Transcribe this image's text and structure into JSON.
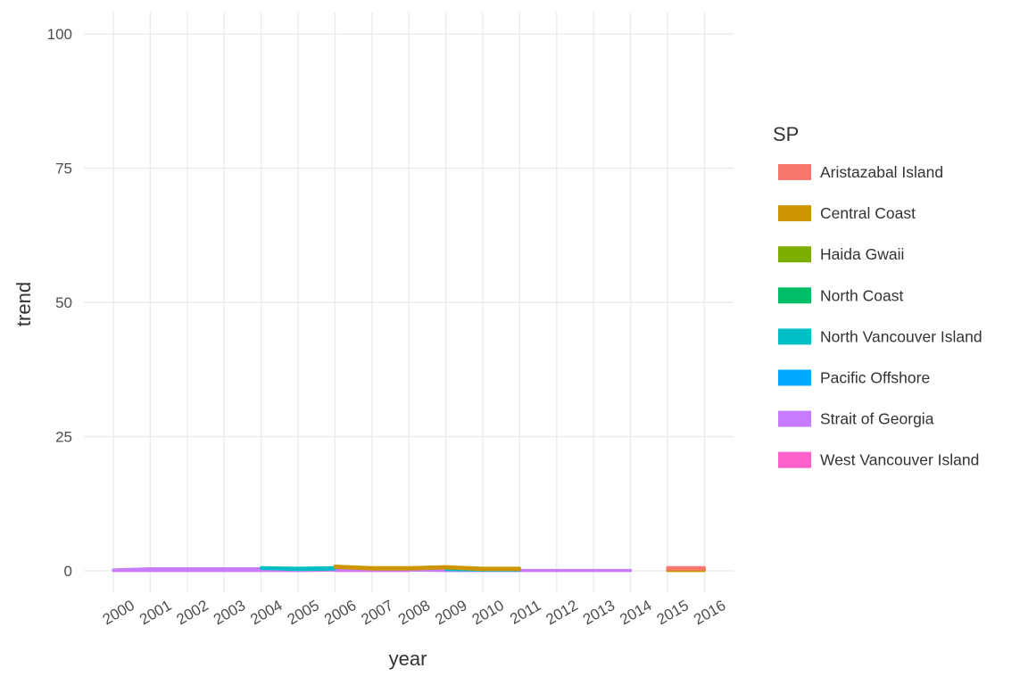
{
  "chart_data": {
    "type": "area",
    "xlabel": "year",
    "ylabel": "trend",
    "x": [
      "2000",
      "2001",
      "2002",
      "2003",
      "2004",
      "2005",
      "2006",
      "2007",
      "2008",
      "2009",
      "2010",
      "2011",
      "2012",
      "2013",
      "2014",
      "2015",
      "2016"
    ],
    "yticks": [
      "0",
      "25",
      "50",
      "75",
      "100"
    ],
    "ylim": [
      -4,
      104
    ],
    "grid": true,
    "legend": {
      "title": "SP",
      "position": "right"
    },
    "series": [
      {
        "name": "Aristazabal Island",
        "color": "#F8766D",
        "values": [
          null,
          null,
          null,
          null,
          null,
          null,
          null,
          null,
          null,
          null,
          null,
          null,
          null,
          null,
          null,
          0.3,
          0.3
        ]
      },
      {
        "name": "Central Coast",
        "color": "#CD9600",
        "values": [
          null,
          null,
          null,
          null,
          null,
          null,
          0.3,
          0.3,
          0.3,
          0.3,
          0.3,
          0.3,
          null,
          null,
          null,
          0.3,
          0.3
        ]
      },
      {
        "name": "Haida Gwaii",
        "color": "#7CAE00",
        "values": [
          null,
          null,
          null,
          null,
          null,
          null,
          null,
          null,
          null,
          null,
          null,
          null,
          null,
          null,
          null,
          null,
          null
        ]
      },
      {
        "name": "North Coast",
        "color": "#00BE67",
        "values": [
          null,
          null,
          null,
          null,
          null,
          null,
          null,
          null,
          null,
          null,
          null,
          null,
          null,
          null,
          null,
          null,
          null
        ]
      },
      {
        "name": "North Vancouver Island",
        "color": "#00BFC4",
        "values": [
          null,
          null,
          null,
          null,
          0.2,
          0.3,
          0.3,
          null,
          null,
          0.3,
          0.1,
          0.1,
          null,
          null,
          null,
          null,
          null
        ]
      },
      {
        "name": "Pacific Offshore",
        "color": "#00A9FF",
        "values": [
          null,
          null,
          null,
          null,
          null,
          null,
          null,
          null,
          null,
          null,
          null,
          null,
          null,
          null,
          null,
          null,
          null
        ]
      },
      {
        "name": "Strait of Georgia",
        "color": "#C77CFF",
        "values": [
          0.2,
          0.4,
          0.4,
          0.4,
          0.4,
          0.2,
          0.2,
          0.2,
          0.2,
          0.2,
          0.1,
          0.1,
          0.1,
          0.1,
          0.1,
          null,
          null
        ]
      },
      {
        "name": "West Vancouver Island",
        "color": "#FF61CC",
        "values": [
          null,
          null,
          null,
          null,
          null,
          null,
          0.1,
          0.1,
          0.1,
          null,
          null,
          null,
          null,
          null,
          null,
          null,
          null
        ]
      }
    ]
  }
}
